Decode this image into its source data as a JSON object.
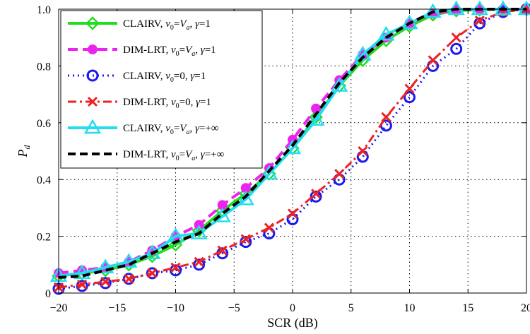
{
  "chart_data": {
    "type": "line",
    "xlabel": "SCR (dB)",
    "ylabel": "P",
    "ylabel_sub": "d",
    "xlim": [
      -20,
      20
    ],
    "ylim": [
      0,
      1
    ],
    "xticks": [
      -20,
      -15,
      -10,
      -5,
      0,
      5,
      10,
      15,
      20
    ],
    "xtick_labels": [
      "−20",
      "−15",
      "−10",
      "−5",
      "0",
      "5",
      "10",
      "15",
      "20"
    ],
    "yticks": [
      0,
      0.2,
      0.4,
      0.6,
      0.8,
      1.0
    ],
    "ytick_labels": [
      "0",
      "0.2",
      "0.4",
      "0.6",
      "0.8",
      "1.0"
    ],
    "grid": true,
    "legend_position": "top-left",
    "x": [
      -20,
      -18,
      -16,
      -14,
      -12,
      -10,
      -8,
      -6,
      -4,
      -2,
      0,
      2,
      4,
      6,
      8,
      10,
      12,
      14,
      16,
      18,
      20
    ],
    "series": [
      {
        "legend": {
          "name": "CLAIRV, ",
          "v": "v",
          "vsub": "0",
          "eq1": "=",
          "va": "V",
          "vasub": "a",
          "rest": ", ",
          "g": "γ",
          "tail": "=1"
        },
        "color": "#22dd22",
        "dash": "",
        "marker": "diamond",
        "width": 4,
        "values": [
          0.06,
          0.07,
          0.08,
          0.1,
          0.13,
          0.17,
          0.22,
          0.29,
          0.35,
          0.42,
          0.51,
          0.62,
          0.73,
          0.82,
          0.89,
          0.94,
          0.98,
          0.995,
          0.998,
          1.0,
          1.0
        ]
      },
      {
        "legend": {
          "name": "DIM-LRT, ",
          "v": "v",
          "vsub": "0",
          "eq1": "=",
          "va": "V",
          "vasub": "a",
          "rest": ", ",
          "g": "γ",
          "tail": "=1"
        },
        "color": "#ee22ee",
        "dash": "14 7",
        "marker": "circle-filled",
        "width": 4,
        "values": [
          0.07,
          0.08,
          0.09,
          0.11,
          0.15,
          0.2,
          0.24,
          0.31,
          0.37,
          0.44,
          0.54,
          0.65,
          0.75,
          0.84,
          0.9,
          0.95,
          0.985,
          0.997,
          1.0,
          1.0,
          1.0
        ]
      },
      {
        "legend": {
          "name": "CLAIRV, ",
          "v": "v",
          "vsub": "0",
          "eq1": "=0, ",
          "va": "",
          "vasub": "",
          "rest": "",
          "g": "γ",
          "tail": "=1"
        },
        "color": "#1a1aee",
        "dash": "2 5",
        "marker": "circle-open",
        "width": 3,
        "values": [
          0.015,
          0.025,
          0.035,
          0.05,
          0.07,
          0.08,
          0.1,
          0.14,
          0.18,
          0.21,
          0.26,
          0.34,
          0.4,
          0.48,
          0.59,
          0.69,
          0.8,
          0.86,
          0.95,
          0.99,
          1.0
        ]
      },
      {
        "legend": {
          "name": "DIM-LRT, ",
          "v": "v",
          "vsub": "0",
          "eq1": "=0, ",
          "va": "",
          "vasub": "",
          "rest": "",
          "g": "γ",
          "tail": "=1"
        },
        "color": "#ee2222",
        "dash": "12 5 3 5",
        "marker": "x",
        "width": 3,
        "values": [
          0.02,
          0.03,
          0.04,
          0.05,
          0.07,
          0.09,
          0.11,
          0.15,
          0.19,
          0.23,
          0.28,
          0.35,
          0.42,
          0.5,
          0.62,
          0.72,
          0.82,
          0.9,
          0.96,
          0.99,
          1.0
        ]
      },
      {
        "legend": {
          "name": "CLAIRV, ",
          "v": "v",
          "vsub": "0",
          "eq1": "=",
          "va": "V",
          "vasub": "a",
          "rest": ", ",
          "g": "γ",
          "tail": "=+∞"
        },
        "color": "#22ddee",
        "dash": "",
        "marker": "triangle",
        "width": 4,
        "values": [
          0.06,
          0.07,
          0.09,
          0.11,
          0.14,
          0.2,
          0.21,
          0.27,
          0.33,
          0.42,
          0.51,
          0.61,
          0.73,
          0.84,
          0.91,
          0.95,
          0.99,
          1.0,
          1.0,
          1.0,
          1.0
        ]
      },
      {
        "legend": {
          "name": "DIM-LRT, ",
          "v": "v",
          "vsub": "0",
          "eq1": "=",
          "va": "V",
          "vasub": "a",
          "rest": ", ",
          "g": "γ",
          "tail": "=+∞"
        },
        "color": "#000000",
        "dash": "11 6",
        "marker": "none",
        "width": 4,
        "values": [
          0.055,
          0.06,
          0.08,
          0.1,
          0.14,
          0.18,
          0.21,
          0.28,
          0.34,
          0.43,
          0.52,
          0.63,
          0.74,
          0.83,
          0.9,
          0.95,
          0.99,
          1.0,
          1.0,
          1.0,
          1.0
        ]
      }
    ]
  }
}
